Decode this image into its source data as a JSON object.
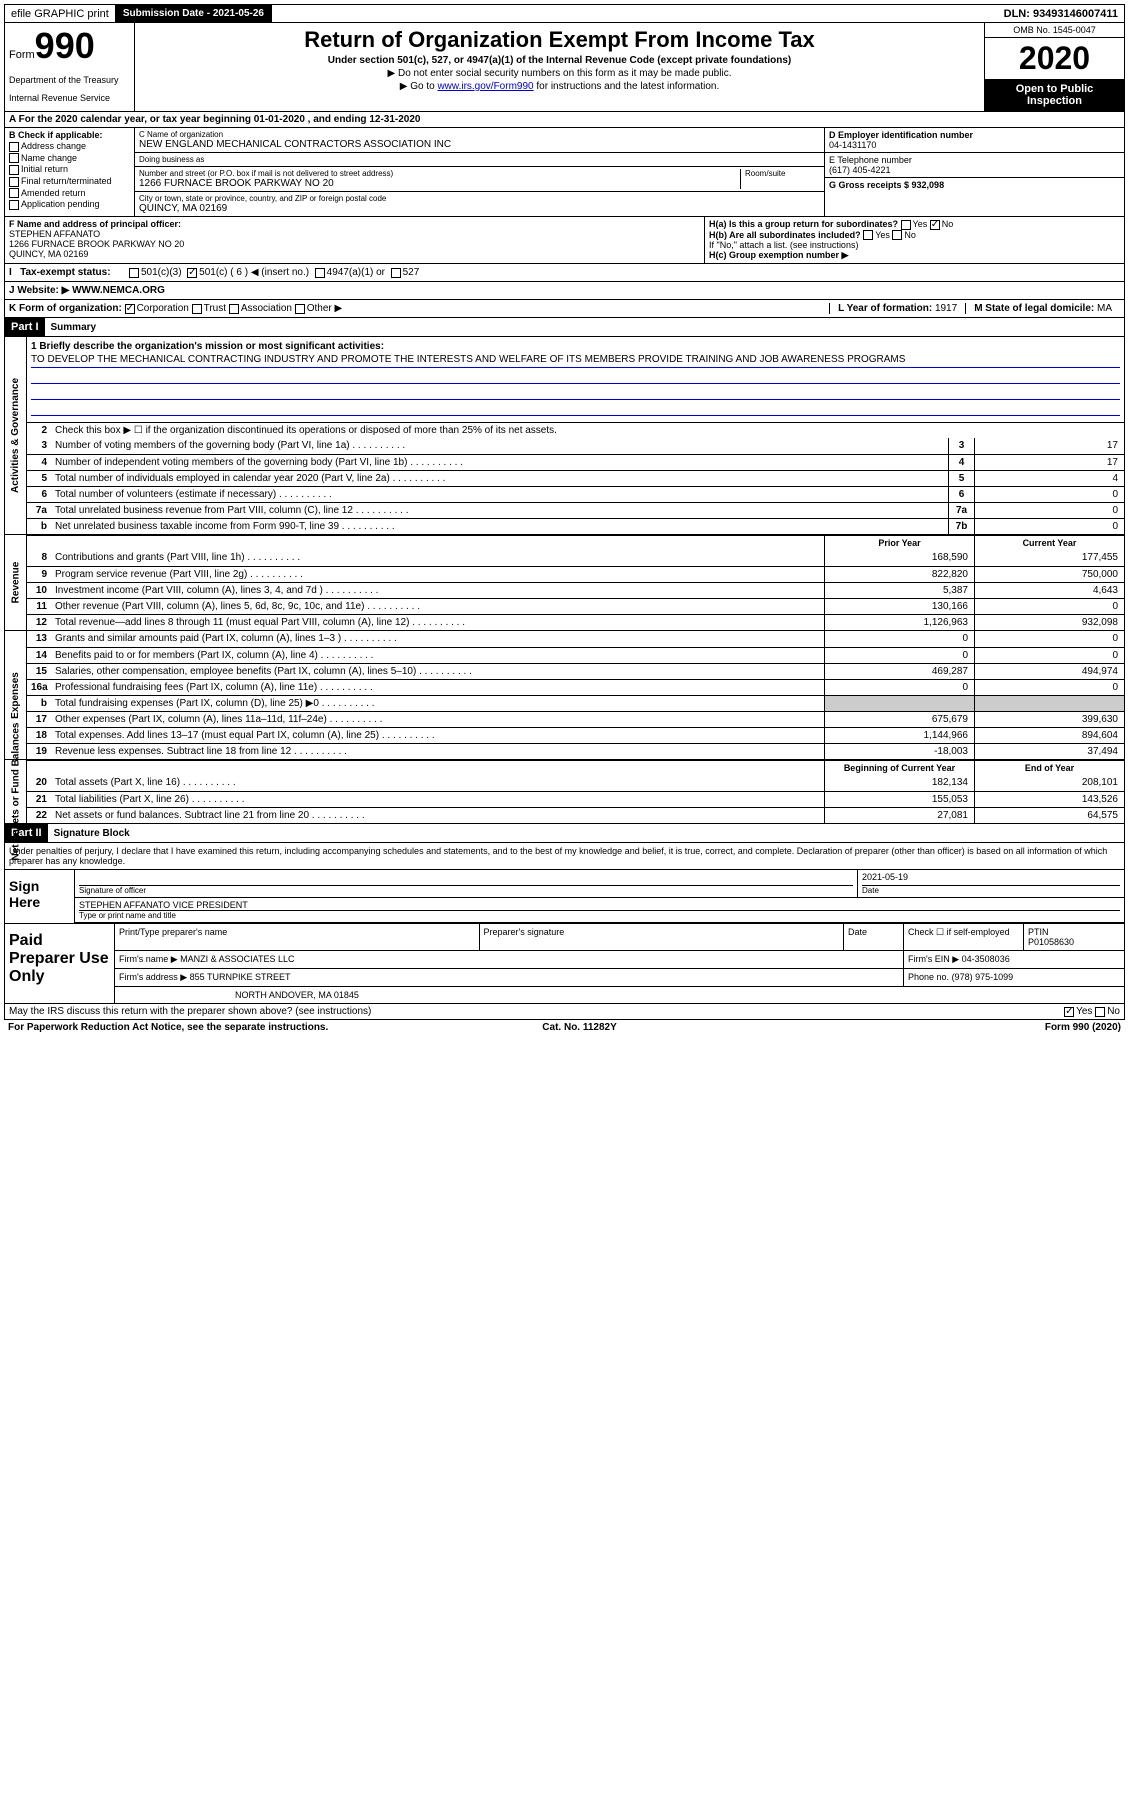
{
  "topbar": {
    "efile": "efile GRAPHIC print",
    "submission_label": "Submission Date - 2021-05-26",
    "dln": "DLN: 93493146007411"
  },
  "header": {
    "form_prefix": "Form",
    "form_number": "990",
    "dept1": "Department of the Treasury",
    "dept2": "Internal Revenue Service",
    "title": "Return of Organization Exempt From Income Tax",
    "subtitle": "Under section 501(c), 527, or 4947(a)(1) of the Internal Revenue Code (except private foundations)",
    "note1": "▶ Do not enter social security numbers on this form as it may be made public.",
    "note2_pre": "▶ Go to ",
    "note2_link": "www.irs.gov/Form990",
    "note2_post": " for instructions and the latest information.",
    "omb": "OMB No. 1545-0047",
    "year": "2020",
    "open_public": "Open to Public Inspection"
  },
  "row_a": "A For the 2020 calendar year, or tax year beginning 01-01-2020   , and ending 12-31-2020",
  "col_b": {
    "header": "B Check if applicable:",
    "items": [
      "Address change",
      "Name change",
      "Initial return",
      "Final return/terminated",
      "Amended return",
      "Application pending"
    ]
  },
  "col_c": {
    "name_label": "C Name of organization",
    "name": "NEW ENGLAND MECHANICAL CONTRACTORS ASSOCIATION INC",
    "dba_label": "Doing business as",
    "addr_label": "Number and street (or P.O. box if mail is not delivered to street address)",
    "room_label": "Room/suite",
    "addr": "1266 FURNACE BROOK PARKWAY NO 20",
    "city_label": "City or town, state or province, country, and ZIP or foreign postal code",
    "city": "QUINCY, MA  02169"
  },
  "col_d": {
    "ein_label": "D Employer identification number",
    "ein": "04-1431170",
    "tel_label": "E Telephone number",
    "tel": "(617) 405-4221",
    "gross_label": "G Gross receipts $ 932,098"
  },
  "fh": {
    "f_label": "F  Name and address of principal officer:",
    "f_name": "STEPHEN AFFANATO",
    "f_addr1": "1266 FURNACE BROOK PARKWAY NO 20",
    "f_addr2": "QUINCY, MA  02169",
    "ha": "H(a)  Is this a group return for subordinates?",
    "hb": "H(b)  Are all subordinates included?",
    "hb_note": "If \"No,\" attach a list. (see instructions)",
    "hc": "H(c)  Group exemption number ▶"
  },
  "tax_status": {
    "label": "Tax-exempt status:",
    "opts": [
      "501(c)(3)",
      "501(c) ( 6 ) ◀ (insert no.)",
      "4947(a)(1) or",
      "527"
    ]
  },
  "website": {
    "label": "J   Website: ▶",
    "value": "WWW.NEMCA.ORG"
  },
  "row_k": {
    "label": "K Form of organization:",
    "opts": [
      "Corporation",
      "Trust",
      "Association",
      "Other ▶"
    ],
    "l_label": "L Year of formation: ",
    "l_val": "1917",
    "m_label": "M State of legal domicile: ",
    "m_val": "MA"
  },
  "part1": {
    "header": "Part I",
    "title": "Summary",
    "line1_label": "1  Briefly describe the organization's mission or most significant activities:",
    "mission": "TO DEVELOP THE MECHANICAL CONTRACTING INDUSTRY AND PROMOTE THE INTERESTS AND WELFARE OF ITS MEMBERS PROVIDE TRAINING AND JOB AWARENESS PROGRAMS",
    "line2": "Check this box ▶ ☐  if the organization discontinued its operations or disposed of more than 25% of its net assets.",
    "prior_year": "Prior Year",
    "current_year": "Current Year",
    "begin_year": "Beginning of Current Year",
    "end_year": "End of Year"
  },
  "activities_lines": [
    {
      "num": "3",
      "desc": "Number of voting members of the governing body (Part VI, line 1a)",
      "box": "3",
      "val": "17"
    },
    {
      "num": "4",
      "desc": "Number of independent voting members of the governing body (Part VI, line 1b)",
      "box": "4",
      "val": "17"
    },
    {
      "num": "5",
      "desc": "Total number of individuals employed in calendar year 2020 (Part V, line 2a)",
      "box": "5",
      "val": "4"
    },
    {
      "num": "6",
      "desc": "Total number of volunteers (estimate if necessary)",
      "box": "6",
      "val": "0"
    },
    {
      "num": "7a",
      "desc": "Total unrelated business revenue from Part VIII, column (C), line 12",
      "box": "7a",
      "val": "0"
    },
    {
      "num": "b",
      "desc": "Net unrelated business taxable income from Form 990-T, line 39",
      "box": "7b",
      "val": "0"
    }
  ],
  "revenue_lines": [
    {
      "num": "8",
      "desc": "Contributions and grants (Part VIII, line 1h)",
      "py": "168,590",
      "cy": "177,455"
    },
    {
      "num": "9",
      "desc": "Program service revenue (Part VIII, line 2g)",
      "py": "822,820",
      "cy": "750,000"
    },
    {
      "num": "10",
      "desc": "Investment income (Part VIII, column (A), lines 3, 4, and 7d )",
      "py": "5,387",
      "cy": "4,643"
    },
    {
      "num": "11",
      "desc": "Other revenue (Part VIII, column (A), lines 5, 6d, 8c, 9c, 10c, and 11e)",
      "py": "130,166",
      "cy": "0"
    },
    {
      "num": "12",
      "desc": "Total revenue—add lines 8 through 11 (must equal Part VIII, column (A), line 12)",
      "py": "1,126,963",
      "cy": "932,098"
    }
  ],
  "expense_lines": [
    {
      "num": "13",
      "desc": "Grants and similar amounts paid (Part IX, column (A), lines 1–3 )",
      "py": "0",
      "cy": "0"
    },
    {
      "num": "14",
      "desc": "Benefits paid to or for members (Part IX, column (A), line 4)",
      "py": "0",
      "cy": "0"
    },
    {
      "num": "15",
      "desc": "Salaries, other compensation, employee benefits (Part IX, column (A), lines 5–10)",
      "py": "469,287",
      "cy": "494,974"
    },
    {
      "num": "16a",
      "desc": "Professional fundraising fees (Part IX, column (A), line 11e)",
      "py": "0",
      "cy": "0"
    },
    {
      "num": "b",
      "desc": "Total fundraising expenses (Part IX, column (D), line 25) ▶0",
      "py": "",
      "cy": "",
      "shaded": true
    },
    {
      "num": "17",
      "desc": "Other expenses (Part IX, column (A), lines 11a–11d, 11f–24e)",
      "py": "675,679",
      "cy": "399,630"
    },
    {
      "num": "18",
      "desc": "Total expenses. Add lines 13–17 (must equal Part IX, column (A), line 25)",
      "py": "1,144,966",
      "cy": "894,604"
    },
    {
      "num": "19",
      "desc": "Revenue less expenses. Subtract line 18 from line 12",
      "py": "-18,003",
      "cy": "37,494"
    }
  ],
  "netassets_lines": [
    {
      "num": "20",
      "desc": "Total assets (Part X, line 16)",
      "py": "182,134",
      "cy": "208,101"
    },
    {
      "num": "21",
      "desc": "Total liabilities (Part X, line 26)",
      "py": "155,053",
      "cy": "143,526"
    },
    {
      "num": "22",
      "desc": "Net assets or fund balances. Subtract line 21 from line 20",
      "py": "27,081",
      "cy": "64,575"
    }
  ],
  "part2": {
    "header": "Part II",
    "title": "Signature Block",
    "declare": "Under penalties of perjury, I declare that I have examined this return, including accompanying schedules and statements, and to the best of my knowledge and belief, it is true, correct, and complete. Declaration of preparer (other than officer) is based on all information of which preparer has any knowledge."
  },
  "sign": {
    "label": "Sign Here",
    "sig_label": "Signature of officer",
    "date_label": "Date",
    "date": "2021-05-19",
    "name": "STEPHEN AFFANATO VICE PRESIDENT",
    "name_label": "Type or print name and title"
  },
  "paid": {
    "label": "Paid Preparer Use Only",
    "h_name": "Print/Type preparer's name",
    "h_sig": "Preparer's signature",
    "h_date": "Date",
    "h_check": "Check ☐ if self-employed",
    "h_ptin": "PTIN",
    "ptin": "P01058630",
    "firm_name_label": "Firm's name    ▶",
    "firm_name": "MANZI & ASSOCIATES LLC",
    "firm_ein_label": "Firm's EIN ▶",
    "firm_ein": "04-3508036",
    "firm_addr_label": "Firm's address ▶",
    "firm_addr1": "855 TURNPIKE STREET",
    "firm_addr2": "NORTH ANDOVER, MA  01845",
    "phone_label": "Phone no.",
    "phone": "(978) 975-1099"
  },
  "footer": {
    "irs_discuss": "May the IRS discuss this return with the preparer shown above? (see instructions)",
    "paperwork": "For Paperwork Reduction Act Notice, see the separate instructions.",
    "cat": "Cat. No. 11282Y",
    "form": "Form 990 (2020)"
  }
}
